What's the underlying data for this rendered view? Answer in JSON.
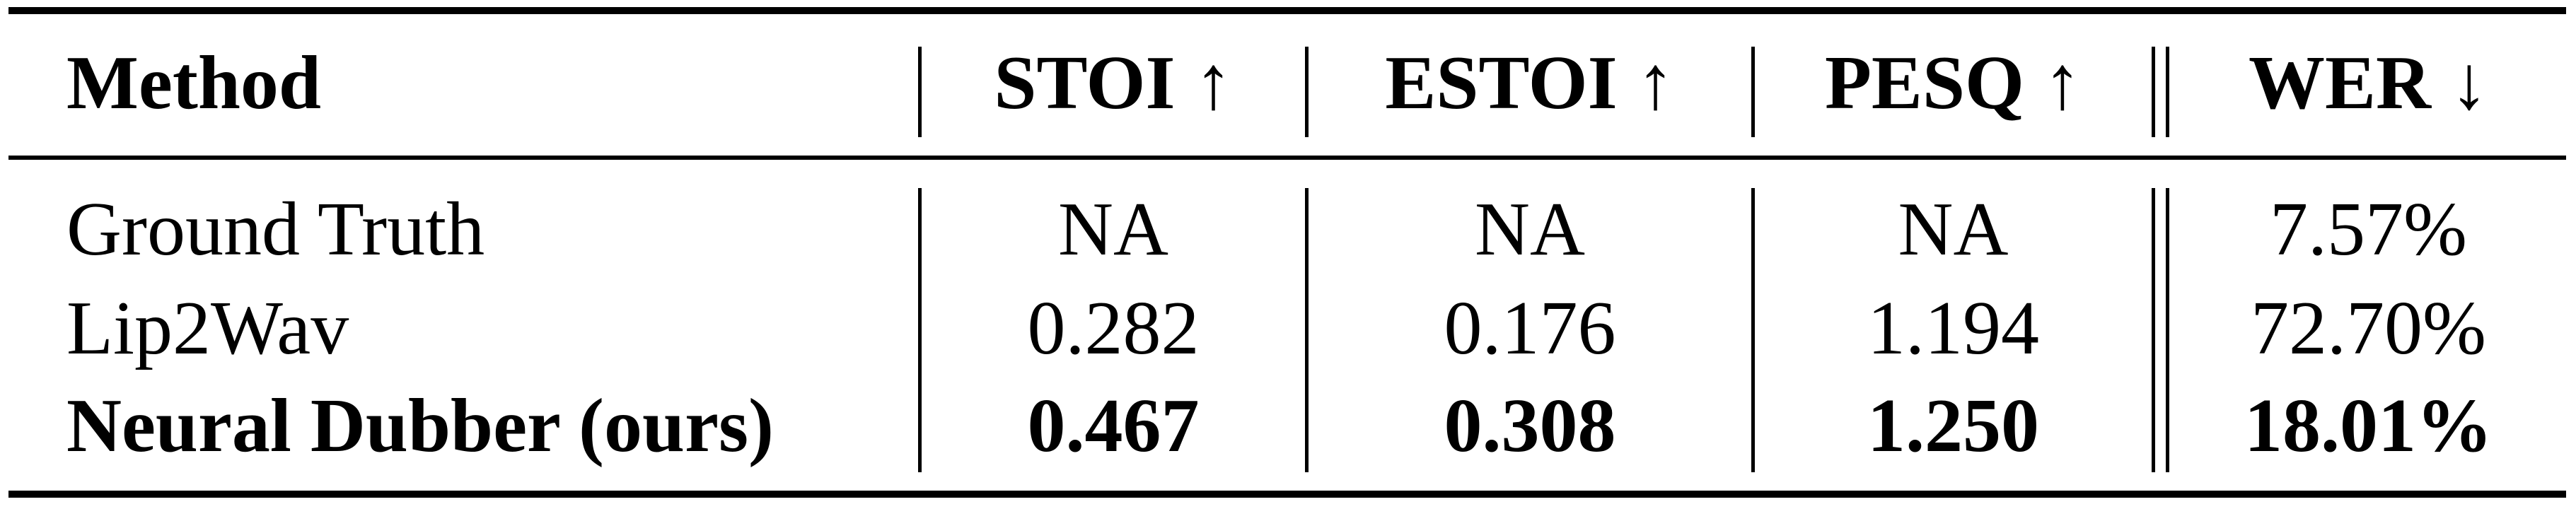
{
  "chart_data": {
    "type": "table",
    "columns": [
      "Method",
      "STOI ↑",
      "ESTOI ↑",
      "PESQ ↑",
      "WER ↓"
    ],
    "rows": [
      {
        "method": "Ground Truth",
        "stoi": "NA",
        "estoi": "NA",
        "pesq": "NA",
        "wer": "7.57%",
        "bold": false
      },
      {
        "method": "Lip2Wav",
        "stoi": "0.282",
        "estoi": "0.176",
        "pesq": "1.194",
        "wer": "72.70%",
        "bold": false
      },
      {
        "method": "Neural Dubber (ours)",
        "stoi": "0.467",
        "estoi": "0.308",
        "pesq": "1.250",
        "wer": "18.01%",
        "bold": true
      }
    ]
  }
}
